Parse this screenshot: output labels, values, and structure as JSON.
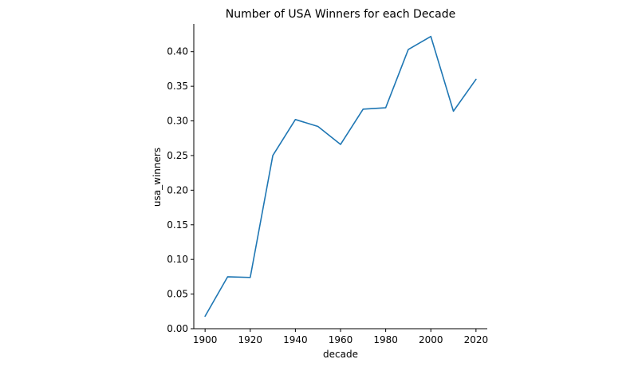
{
  "chart_data": {
    "type": "line",
    "title": "Number of USA Winners for each Decade",
    "xlabel": "decade",
    "ylabel": "usa_winners",
    "x": [
      1900,
      1910,
      1920,
      1930,
      1940,
      1950,
      1960,
      1970,
      1980,
      1990,
      2000,
      2010,
      2020
    ],
    "series": [
      {
        "values": [
          0.018,
          0.075,
          0.074,
          0.25,
          0.302,
          0.292,
          0.266,
          0.317,
          0.319,
          0.403,
          0.422,
          0.314,
          0.36
        ],
        "color": "#1f77b4"
      }
    ],
    "xlim": [
      1895,
      2025
    ],
    "ylim": [
      0.0,
      0.44
    ],
    "xticks": [
      1900,
      1920,
      1940,
      1960,
      1980,
      2000,
      2020
    ],
    "xtick_labels": [
      "1900",
      "1920",
      "1940",
      "1960",
      "1980",
      "2000",
      "2020"
    ],
    "yticks": [
      0.0,
      0.05,
      0.1,
      0.15,
      0.2,
      0.25,
      0.3,
      0.35,
      0.4
    ],
    "ytick_labels": [
      "0.00",
      "0.05",
      "0.10",
      "0.15",
      "0.20",
      "0.25",
      "0.30",
      "0.35",
      "0.40"
    ],
    "grid": false,
    "spines": "left-bottom"
  }
}
